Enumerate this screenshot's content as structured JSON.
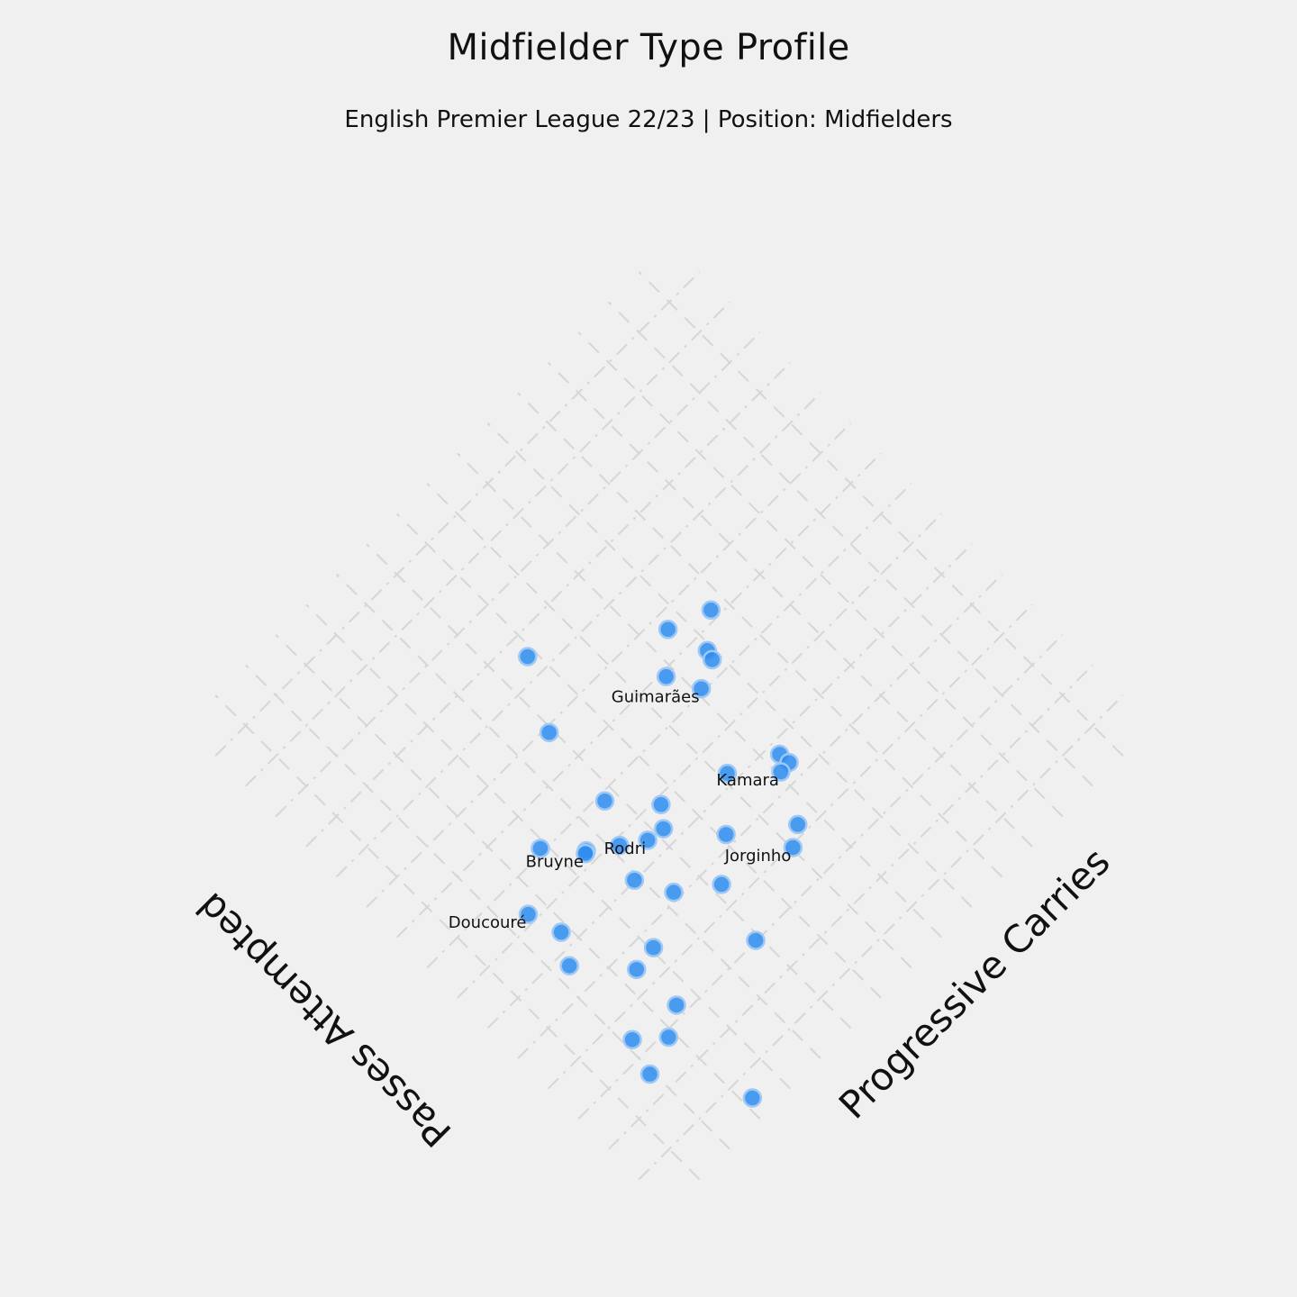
{
  "chart_data": {
    "type": "scatter",
    "title": "Midfielder Type Profile",
    "subtitle": "English Premier League 22/23 | Position: Midfielders",
    "xlabel": "Progressive Carries",
    "ylabel": "Passes Attempted",
    "xlim": [
      0,
      16
    ],
    "ylim": [
      0,
      16
    ],
    "grid": true,
    "colors": {
      "point": "#2b8cee",
      "grid": "#d6d6d6",
      "background": "#f0f0f0"
    },
    "points": [
      {
        "x": 3.22,
        "y": 0.47,
        "label": ""
      },
      {
        "x": 5.32,
        "y": 5.17,
        "label": ""
      },
      {
        "x": 3.84,
        "y": 8.1,
        "label": ""
      },
      {
        "x": 2.38,
        "y": 5.68,
        "label": ""
      },
      {
        "x": 2.2,
        "y": 3.42,
        "label": ""
      },
      {
        "x": 1.92,
        "y": 2.56,
        "label": ""
      },
      {
        "x": 3.5,
        "y": 3.26,
        "label": ""
      },
      {
        "x": 2.84,
        "y": 2.86,
        "label": ""
      },
      {
        "x": 5.88,
        "y": 3.02,
        "label": ""
      },
      {
        "x": 2.8,
        "y": 6.37,
        "label": ""
      },
      {
        "x": 3.43,
        "y": 4.51,
        "label": ""
      },
      {
        "x": 4.87,
        "y": 6.02,
        "label": ""
      },
      {
        "x": 4.07,
        "y": 4.59,
        "label": ""
      },
      {
        "x": 6.24,
        "y": 4.51,
        "label": ""
      },
      {
        "x": 10.6,
        "y": 9.22,
        "label": ""
      },
      {
        "x": 6.56,
        "y": 6.83,
        "label": ""
      },
      {
        "x": 5.69,
        "y": 7.82,
        "label": ""
      },
      {
        "x": 6.2,
        "y": 6.39,
        "label": ""
      },
      {
        "x": 5.2,
        "y": 6.84,
        "label": ""
      },
      {
        "x": 4.56,
        "y": 7.3,
        "label": ""
      },
      {
        "x": 7.14,
        "y": 5.26,
        "label": ""
      },
      {
        "x": 5.9,
        "y": 9.87,
        "label": ""
      },
      {
        "x": 6.8,
        "y": 11.48,
        "label": ""
      },
      {
        "x": 9.57,
        "y": 9.61,
        "label": ""
      },
      {
        "x": 9.87,
        "y": 8.61,
        "label": ""
      },
      {
        "x": 8.17,
        "y": 6.25,
        "label": ""
      },
      {
        "x": 9.35,
        "y": 5.7,
        "label": ""
      },
      {
        "x": 8.49,
        "y": 4.24,
        "label": ""
      },
      {
        "x": 9.37,
        "y": 5.41,
        "label": ""
      },
      {
        "x": 8.76,
        "y": 8.86,
        "label": ""
      },
      {
        "x": 9.8,
        "y": 8.38,
        "label": ""
      },
      {
        "x": 4.5,
        "y": 7.27,
        "label": "Bruyne"
      },
      {
        "x": 5.75,
        "y": 6.46,
        "label": "Rodri"
      },
      {
        "x": 9.08,
        "y": 5.39,
        "label": "Kamara"
      },
      {
        "x": 9.14,
        "y": 8.08,
        "label": "Guimarães"
      },
      {
        "x": 2.55,
        "y": 7.21,
        "label": "Doucouré"
      },
      {
        "x": 8.03,
        "y": 3.94,
        "label": "Jorginho"
      }
    ]
  }
}
